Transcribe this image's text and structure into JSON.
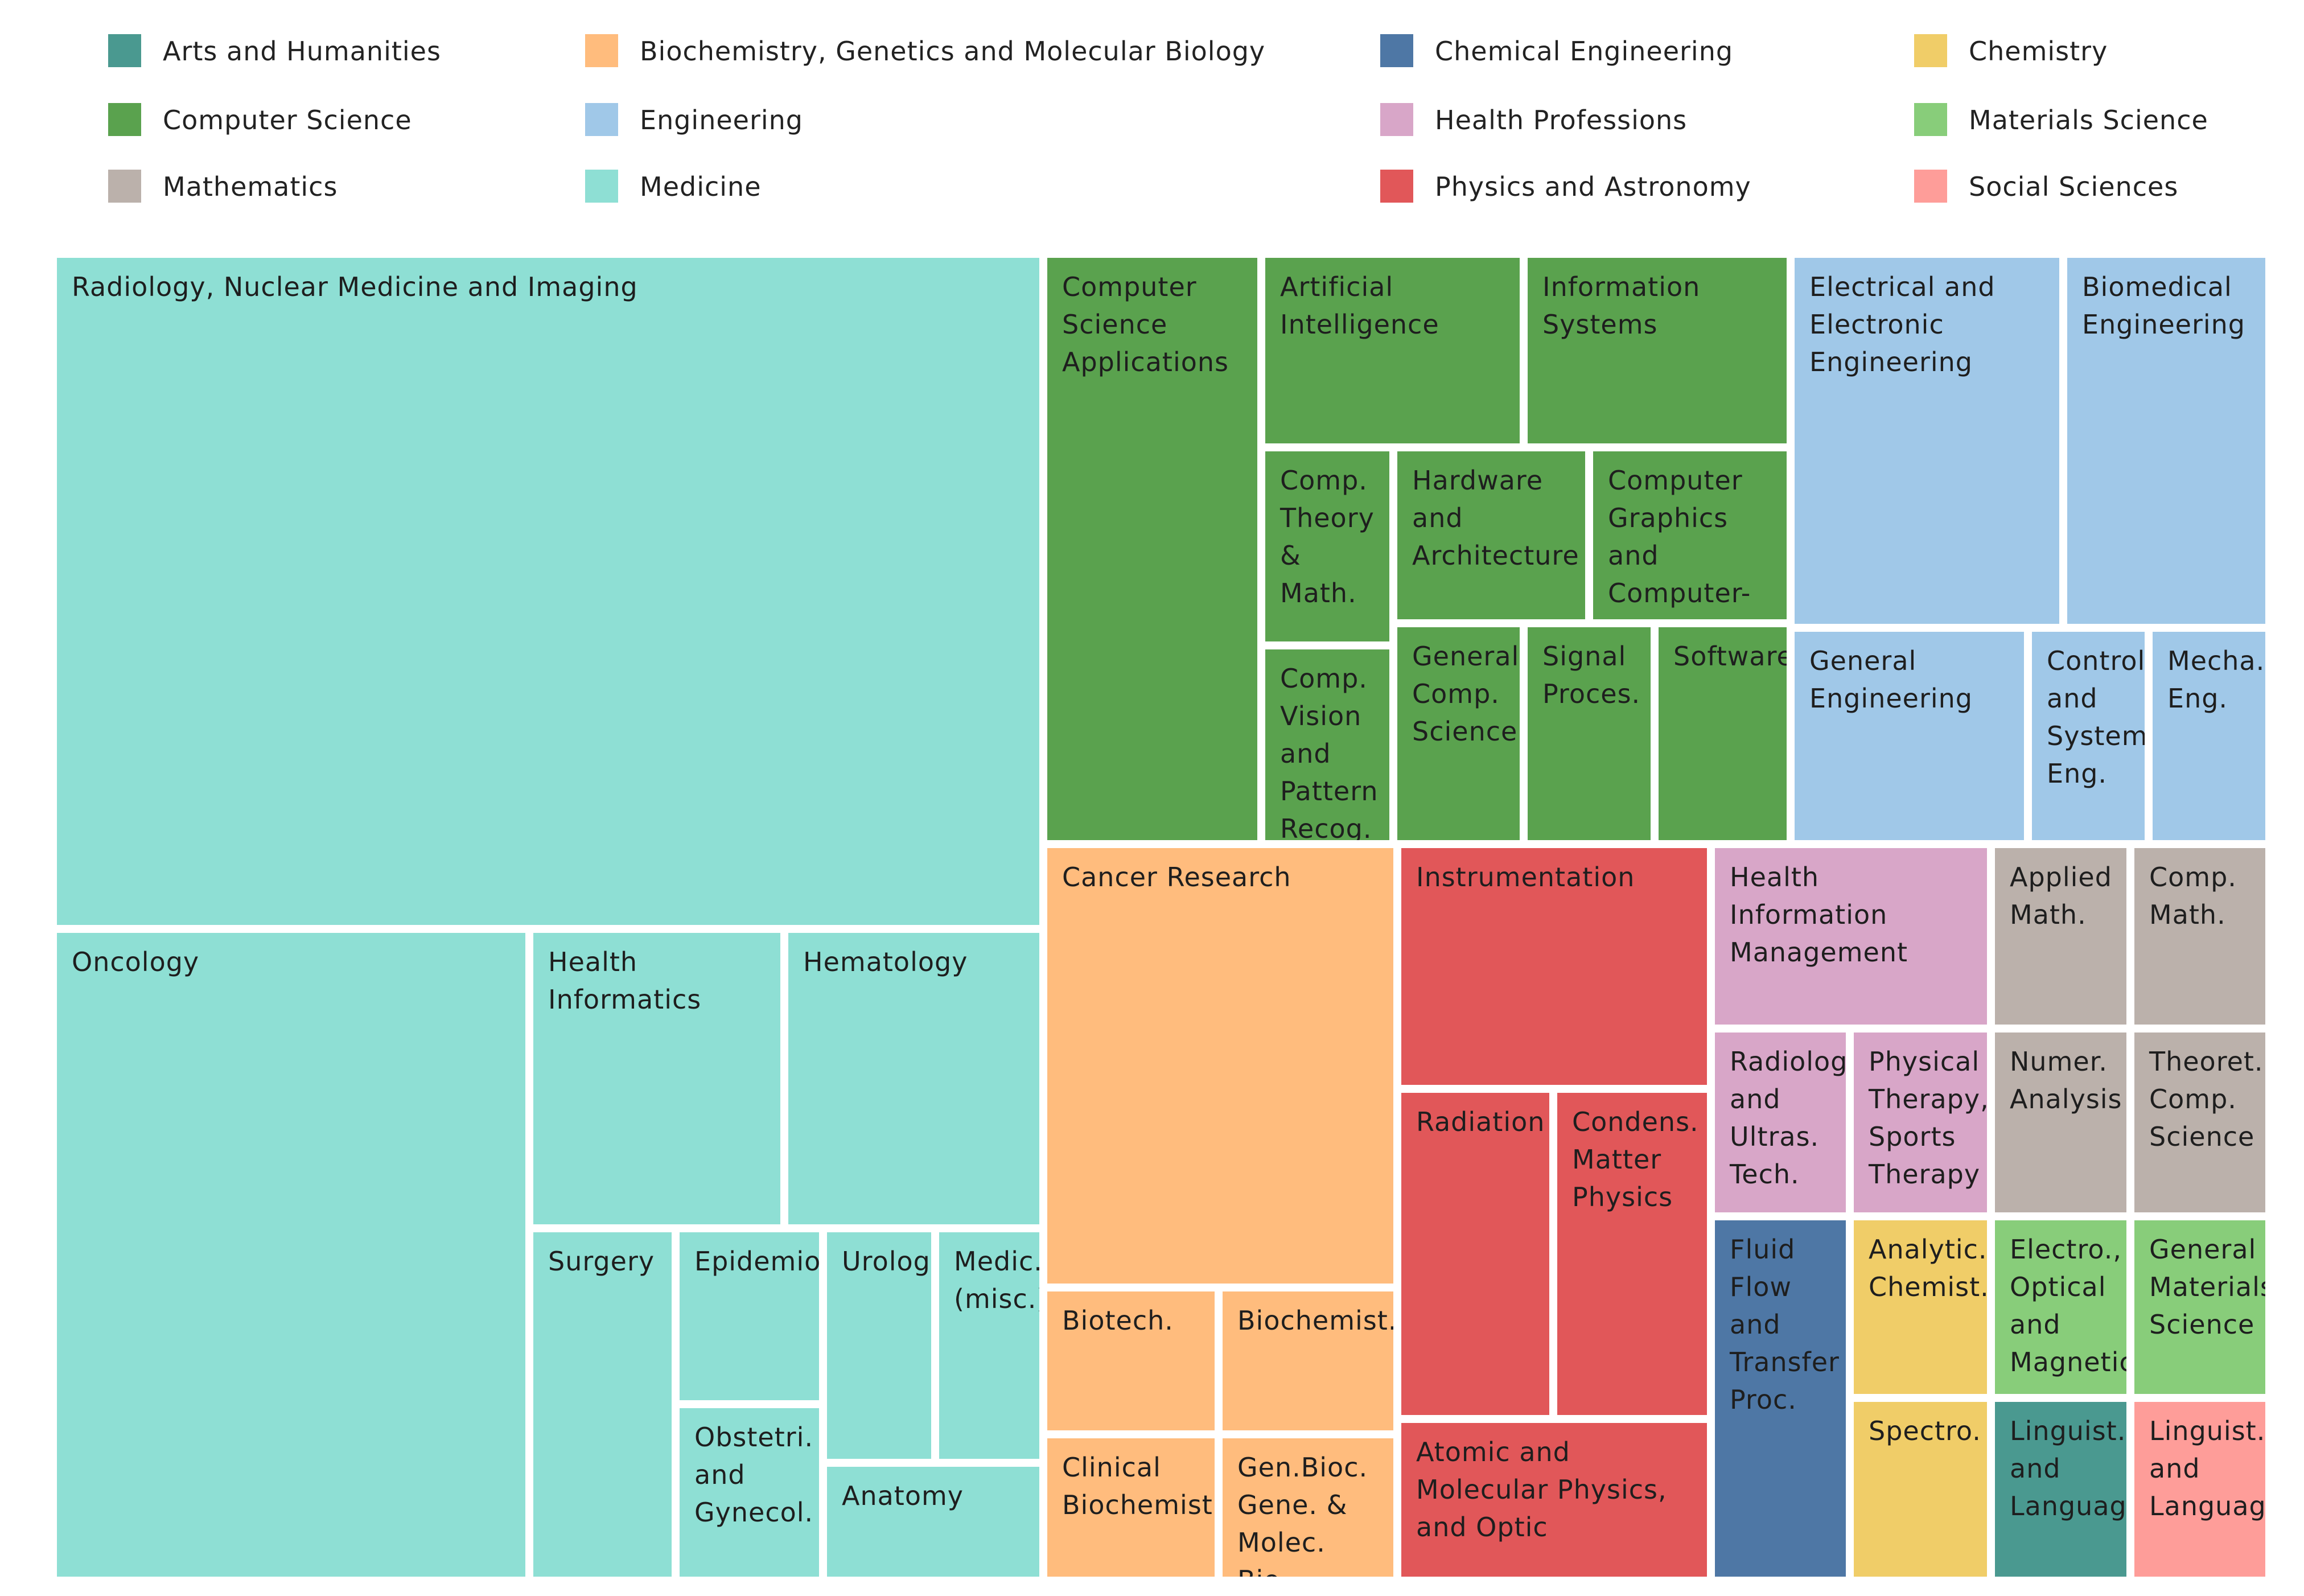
{
  "colors": {
    "Arts and Humanities": "#4a9990",
    "Biochemistry, Genetics and Molecular Biology": "#ffbc7d",
    "Chemical Engineering": "#4e77a5",
    "Chemistry": "#f0cd68",
    "Computer Science": "#5aa24e",
    "Engineering": "#a0c8e8",
    "Health Professions": "#d8a6c8",
    "Materials Science": "#88cd7a",
    "Mathematics": "#bbb1ab",
    "Medicine": "#8edfd4",
    "Physics and Astronomy": "#e15759",
    "Social Sciences": "#fe9d99"
  },
  "chart_data": {
    "type": "treemap",
    "title": "",
    "legend_position": "top",
    "legend": [
      "Arts and Humanities",
      "Biochemistry, Genetics and Molecular Biology",
      "Chemical Engineering",
      "Chemistry",
      "Computer Science",
      "Engineering",
      "Health Professions",
      "Materials Science",
      "Mathematics",
      "Medicine",
      "Physics and Astronomy",
      "Social Sciences"
    ],
    "tiles": [
      {
        "label": "Radiology, Nuclear Medicine and Imaging",
        "category": "Medicine"
      },
      {
        "label": "Oncology",
        "category": "Medicine"
      },
      {
        "label": "Health Informatics",
        "category": "Medicine"
      },
      {
        "label": "Hematology",
        "category": "Medicine"
      },
      {
        "label": "Surgery",
        "category": "Medicine"
      },
      {
        "label": "Epidemiol.",
        "category": "Medicine"
      },
      {
        "label": "Obstetri. and Gynecol.",
        "category": "Medicine"
      },
      {
        "label": "Urolog.",
        "category": "Medicine"
      },
      {
        "label": "Medic. (misc.)",
        "category": "Medicine"
      },
      {
        "label": "Anatomy",
        "category": "Medicine"
      },
      {
        "label": "Computer Science Applications",
        "category": "Computer Science"
      },
      {
        "label": "Artificial Intelligence",
        "category": "Computer Science"
      },
      {
        "label": "Information Systems",
        "category": "Computer Science"
      },
      {
        "label": "Comp. Theory & Math.",
        "category": "Computer Science"
      },
      {
        "label": "Hardware and Architecture",
        "category": "Computer Science"
      },
      {
        "label": "Computer Graphics and Computer-Aided Design",
        "category": "Computer Science"
      },
      {
        "label": "Comp. Vision and Pattern Recog.",
        "category": "Computer Science"
      },
      {
        "label": "General Comp. Science",
        "category": "Computer Science"
      },
      {
        "label": "Signal Proces.",
        "category": "Computer Science"
      },
      {
        "label": "Software",
        "category": "Computer Science"
      },
      {
        "label": "Electrical and Electronic Engineering",
        "category": "Engineering"
      },
      {
        "label": "Biomedical Engineering",
        "category": "Engineering"
      },
      {
        "label": "General Engineering",
        "category": "Engineering"
      },
      {
        "label": "Control and Systems Eng.",
        "category": "Engineering"
      },
      {
        "label": "Mecha. Eng.",
        "category": "Engineering"
      },
      {
        "label": "Cancer Research",
        "category": "Biochemistry, Genetics and Molecular Biology"
      },
      {
        "label": "Biotech.",
        "category": "Biochemistry, Genetics and Molecular Biology"
      },
      {
        "label": "Biochemist.",
        "category": "Biochemistry, Genetics and Molecular Biology"
      },
      {
        "label": "Clinical Biochemist.",
        "category": "Biochemistry, Genetics and Molecular Biology"
      },
      {
        "label": "Gen.Bioc. Gene. & Molec. Bio.",
        "category": "Biochemistry, Genetics and Molecular Biology"
      },
      {
        "label": "Instrumentation",
        "category": "Physics and Astronomy"
      },
      {
        "label": "Radiation",
        "category": "Physics and Astronomy"
      },
      {
        "label": "Condens. Matter Physics",
        "category": "Physics and Astronomy"
      },
      {
        "label": "Atomic and Molecular Physics, and Optic",
        "category": "Physics and Astronomy"
      },
      {
        "label": "Health Information Management",
        "category": "Health Professions"
      },
      {
        "label": "Radiolog. and Ultras. Tech.",
        "category": "Health Professions"
      },
      {
        "label": "Physical Therapy, Sports Therapy",
        "category": "Health Professions"
      },
      {
        "label": "Applied Math.",
        "category": "Mathematics"
      },
      {
        "label": "Comp. Math.",
        "category": "Mathematics"
      },
      {
        "label": "Numer. Analysis",
        "category": "Mathematics"
      },
      {
        "label": "Theoret. Comp. Science",
        "category": "Mathematics"
      },
      {
        "label": "Fluid Flow and Transfer Proc.",
        "category": "Chemical Engineering"
      },
      {
        "label": "Analytic. Chemist.",
        "category": "Chemistry"
      },
      {
        "label": "Spectro.",
        "category": "Chemistry"
      },
      {
        "label": "Electro., Optical and Magnetic",
        "category": "Materials Science"
      },
      {
        "label": "General Materials Science",
        "category": "Materials Science"
      },
      {
        "label": "Linguist. and Language",
        "category": "Arts and Humanities"
      },
      {
        "label": "Linguist. and Language",
        "category": "Social Sciences"
      }
    ]
  }
}
